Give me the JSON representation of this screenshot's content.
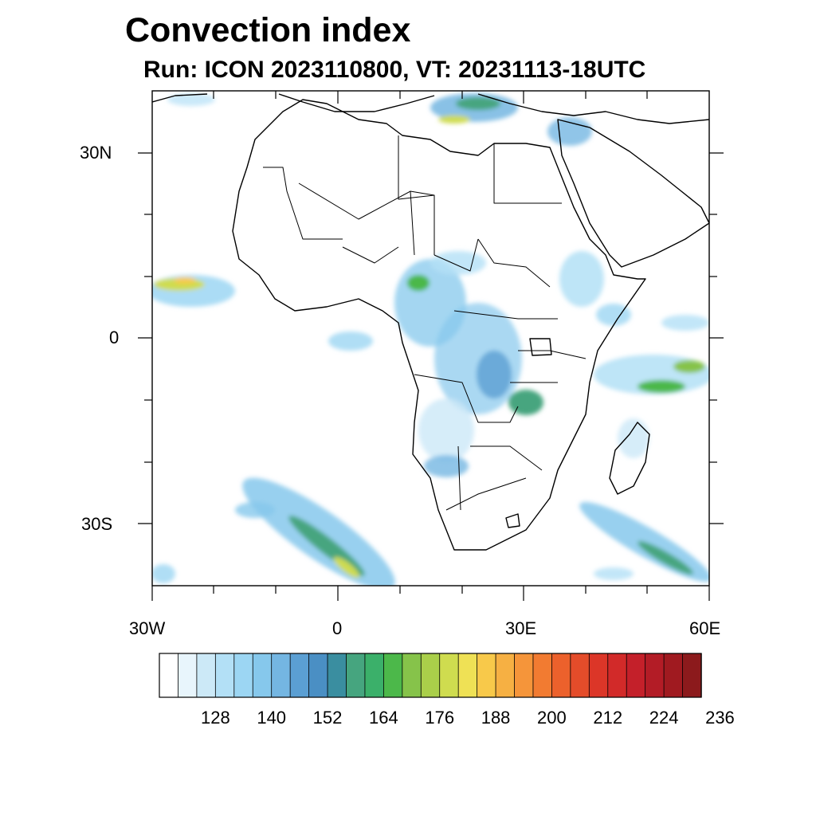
{
  "title": "Convection index",
  "subtitle": "Run: ICON 2023110800,  VT: 20231113-18UTC",
  "axes": {
    "x_ticks": [
      "30W",
      "0",
      "30E",
      "60E"
    ],
    "y_ticks": [
      "30N",
      "0",
      "30S"
    ],
    "lon_range": [
      -30,
      60
    ],
    "lat_range": [
      -40,
      40
    ]
  },
  "colorbar": {
    "tick_labels": [
      "128",
      "140",
      "152",
      "164",
      "176",
      "188",
      "200",
      "212",
      "224",
      "236"
    ],
    "colors": [
      "#ffffff",
      "#e8f5fc",
      "#cce9f7",
      "#b3e0f6",
      "#9cd6f3",
      "#86c8ec",
      "#74b6e2",
      "#5b9fd3",
      "#4a8fc4",
      "#3a8ea0",
      "#46a57f",
      "#3bb06a",
      "#4cb84a",
      "#86c34a",
      "#aacf4a",
      "#cfdc4f",
      "#efe155",
      "#f8c94a",
      "#f6b043",
      "#f5953a",
      "#f27b31",
      "#ec612c",
      "#e44c2a",
      "#dc3628",
      "#d22a29",
      "#c4202a",
      "#b31c26",
      "#a01a20",
      "#8c1a1c"
    ]
  },
  "colors": {
    "coast": "#000000",
    "frame": "#000000"
  }
}
